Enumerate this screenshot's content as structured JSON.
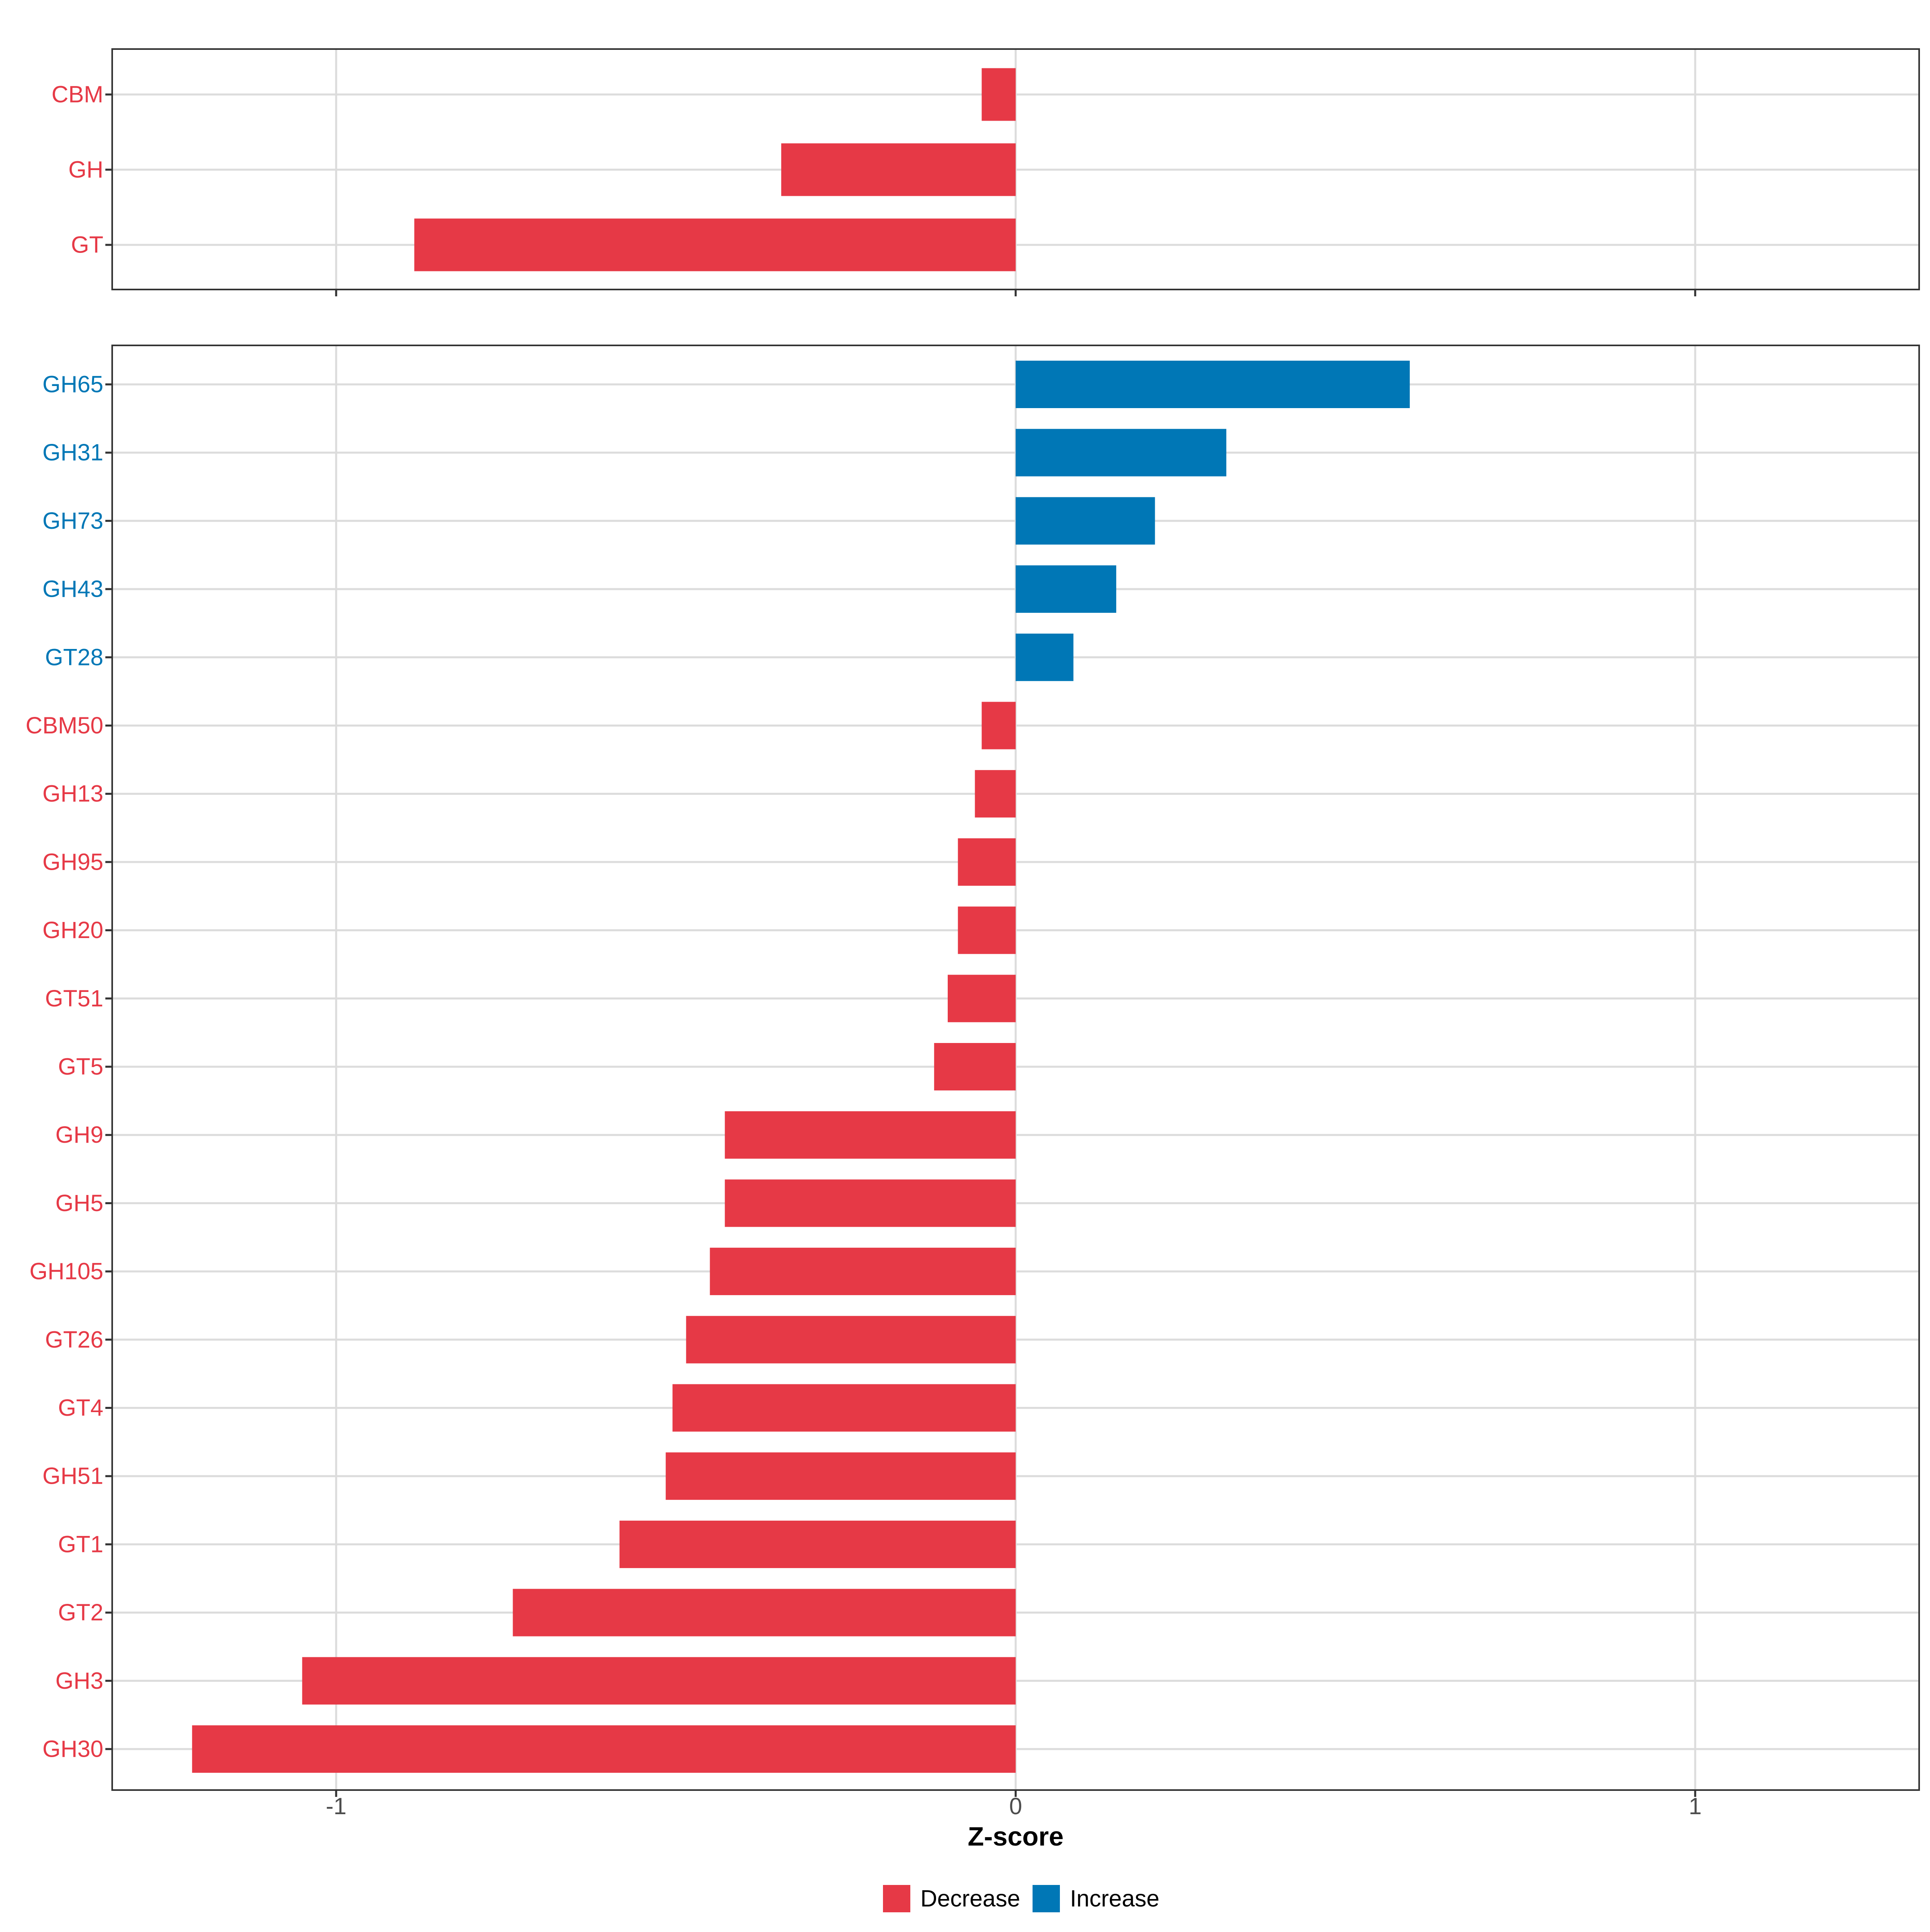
{
  "chart_data": {
    "type": "bar",
    "orientation": "horizontal",
    "xlabel": "Z-score",
    "xlim": [
      -1.33,
      1.33
    ],
    "x_ticks": [
      -1,
      0,
      1
    ],
    "x_tick_labels": [
      "-1",
      "0",
      "1"
    ],
    "grid": true,
    "legend": {
      "position": "bottom",
      "entries": [
        {
          "key": "decrease",
          "label": "Decrease",
          "color": "#E63946"
        },
        {
          "key": "increase",
          "label": "Increase",
          "color": "#0077B6"
        }
      ]
    },
    "panels": [
      {
        "name": "class-level",
        "categories": [
          "CBM",
          "GH",
          "GT"
        ],
        "values": [
          -0.05,
          -0.345,
          -0.885
        ]
      },
      {
        "name": "family-level",
        "categories": [
          "GH65",
          "GH31",
          "GH73",
          "GH43",
          "GT28",
          "CBM50",
          "GH13",
          "GH95",
          "GH20",
          "GT51",
          "GT5",
          "GH9",
          "GH5",
          "GH105",
          "GT26",
          "GT4",
          "GH51",
          "GT1",
          "GT2",
          "GH3",
          "GH30"
        ],
        "values": [
          0.58,
          0.31,
          0.205,
          0.148,
          0.085,
          -0.05,
          -0.06,
          -0.085,
          -0.085,
          -0.1,
          -0.12,
          -0.428,
          -0.428,
          -0.45,
          -0.485,
          -0.505,
          -0.515,
          -0.583,
          -0.74,
          -1.05,
          -1.212
        ]
      }
    ]
  }
}
